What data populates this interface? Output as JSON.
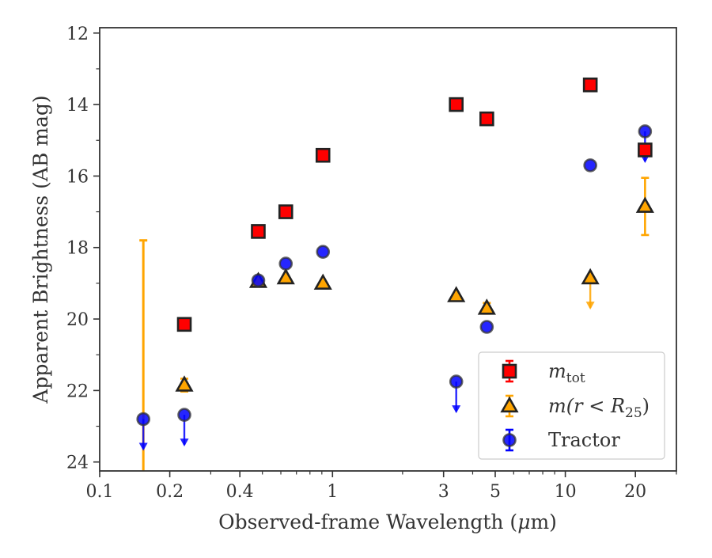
{
  "chart_data": {
    "type": "scatter",
    "xlabel": "Observed-frame Wavelength (μm)",
    "xlabel_parts": {
      "prefix": "Observed-frame Wavelength (",
      "mu": "μ",
      "suffix": "m)"
    },
    "ylabel": "Apparent Brightness (AB mag)",
    "x_scale": "log",
    "xlim": [
      0.1,
      30
    ],
    "ylim": [
      24.25,
      11.85
    ],
    "y_inverted": true,
    "x_ticks": [
      {
        "value": 0.1,
        "label": "0.1"
      },
      {
        "value": 0.2,
        "label": "0.2"
      },
      {
        "value": 0.4,
        "label": "0.4"
      },
      {
        "value": 1,
        "label": "1"
      },
      {
        "value": 3,
        "label": "3"
      },
      {
        "value": 5,
        "label": "5"
      },
      {
        "value": 10,
        "label": "10"
      },
      {
        "value": 20,
        "label": "20"
      }
    ],
    "x_minor_ticks": [
      0.3,
      0.5,
      0.6,
      0.7,
      0.8,
      0.9,
      2,
      4,
      6,
      7,
      8,
      9,
      30
    ],
    "y_ticks": [
      {
        "value": 12,
        "label": "12"
      },
      {
        "value": 14,
        "label": "14"
      },
      {
        "value": 16,
        "label": "16"
      },
      {
        "value": 18,
        "label": "18"
      },
      {
        "value": 20,
        "label": "20"
      },
      {
        "value": 22,
        "label": "22"
      },
      {
        "value": 24,
        "label": "24"
      }
    ],
    "y_minor_ticks": [
      13,
      15,
      17,
      19,
      21,
      23
    ],
    "grid": false,
    "legend_position": "lower-right",
    "series": [
      {
        "legend_label": {
          "base": "m",
          "sub": "tot"
        },
        "marker": "square",
        "color": "#ff0000",
        "edge_color": "#222222",
        "points": [
          {
            "x": 0.231,
            "y": 20.15
          },
          {
            "x": 0.48,
            "y": 17.55
          },
          {
            "x": 0.63,
            "y": 17.0
          },
          {
            "x": 0.91,
            "y": 15.42
          },
          {
            "x": 3.4,
            "y": 14.0
          },
          {
            "x": 4.6,
            "y": 14.4
          },
          {
            "x": 12.8,
            "y": 13.45
          },
          {
            "x": 22.0,
            "y": 15.27
          }
        ]
      },
      {
        "legend_label": {
          "base": "m(r < R",
          "sub": "25",
          "tail": ")"
        },
        "marker": "triangle",
        "color": "#ffa500",
        "edge_color": "#222222",
        "points": [
          {
            "x": 0.154,
            "y_low": 17.8,
            "y_high": 24.25,
            "marker": false
          },
          {
            "x": 0.231,
            "y": 21.85,
            "err": 0.18
          },
          {
            "x": 0.48,
            "y": 18.95
          },
          {
            "x": 0.63,
            "y": 18.85
          },
          {
            "x": 0.91,
            "y": 19.0
          },
          {
            "x": 3.4,
            "y": 19.35
          },
          {
            "x": 4.6,
            "y": 19.7,
            "err": 0.15
          },
          {
            "x": 12.8,
            "y": 18.85,
            "upper_limit": true
          },
          {
            "x": 22.0,
            "y": 16.85,
            "err": 0.8
          }
        ]
      },
      {
        "legend_label": {
          "base": "Tractor"
        },
        "marker": "circle",
        "color": "#0000ff",
        "edge_color": "#333333",
        "points": [
          {
            "x": 0.154,
            "y": 22.8,
            "upper_limit": true
          },
          {
            "x": 0.231,
            "y": 22.68,
            "upper_limit": true
          },
          {
            "x": 0.48,
            "y": 18.92
          },
          {
            "x": 0.63,
            "y": 18.45
          },
          {
            "x": 0.91,
            "y": 18.12
          },
          {
            "x": 3.4,
            "y": 21.75,
            "upper_limit": true
          },
          {
            "x": 4.6,
            "y": 20.22
          },
          {
            "x": 12.8,
            "y": 15.7
          },
          {
            "x": 22.0,
            "y": 14.75,
            "upper_limit": true
          }
        ]
      }
    ]
  }
}
